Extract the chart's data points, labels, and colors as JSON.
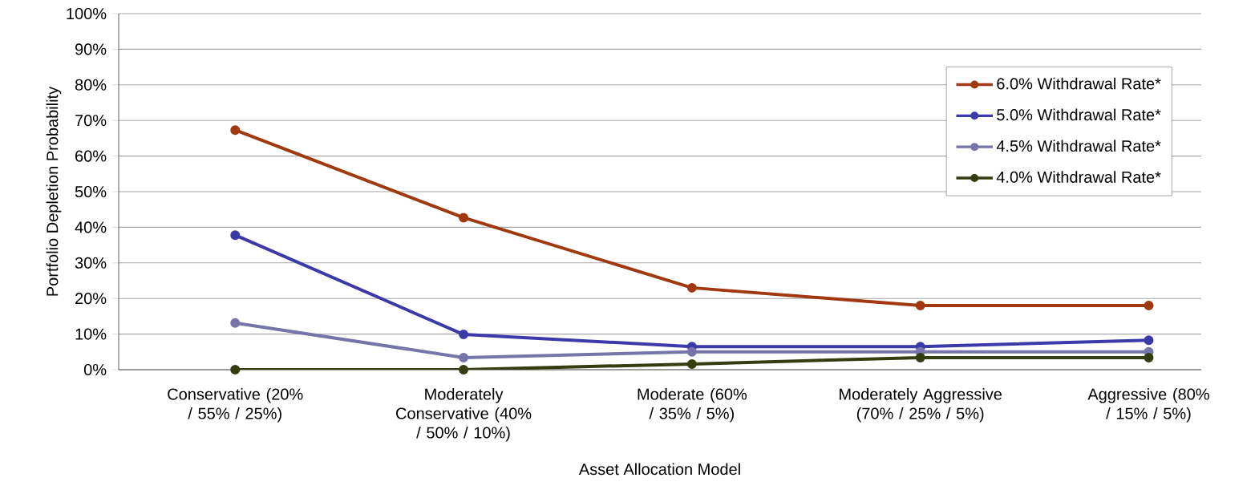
{
  "chart_data": {
    "type": "line",
    "xlabel": "Asset Allocation Model",
    "ylabel": "Portfolio Depletion Probability",
    "categories": [
      "Conservative (20% / 55% / 25%)",
      "Moderately Conservative (40% / 50% / 10%)",
      "Moderate (60% / 35% / 5%)",
      "Moderately Aggressive (70% / 25% / 5%)",
      "Aggressive (80% / 15% / 5%)"
    ],
    "series": [
      {
        "name": "6.0% Withdrawal Rate*",
        "color": "#a0390f",
        "values": [
          67.3,
          42.7,
          23,
          18,
          18
        ]
      },
      {
        "name": "5.0% Withdrawal Rate*",
        "color": "#3b3aa8",
        "values": [
          37.8,
          9.9,
          6.5,
          6.5,
          8.3
        ]
      },
      {
        "name": "4.5% Withdrawal Rate*",
        "color": "#7575aa",
        "values": [
          13.1,
          3.4,
          5,
          5,
          5
        ]
      },
      {
        "name": "4.0% Withdrawal Rate*",
        "color": "#343d10",
        "values": [
          0,
          0,
          1.6,
          3.4,
          3.4
        ]
      }
    ],
    "ylim": [
      0,
      100
    ],
    "yticks": [
      {
        "value": 0,
        "label": "0%"
      },
      {
        "value": 10,
        "label": "10%"
      },
      {
        "value": 20,
        "label": "20%"
      },
      {
        "value": 30,
        "label": "30%"
      },
      {
        "value": 40,
        "label": "40%"
      },
      {
        "value": 50,
        "label": "50%"
      },
      {
        "value": 60,
        "label": "60%"
      },
      {
        "value": 70,
        "label": "70%"
      },
      {
        "value": 80,
        "label": "80%"
      },
      {
        "value": 90,
        "label": "90%"
      },
      {
        "value": 100,
        "label": "100%"
      }
    ],
    "grid": "y",
    "legend": "top right",
    "marker": "circle",
    "line_style": "solid"
  }
}
